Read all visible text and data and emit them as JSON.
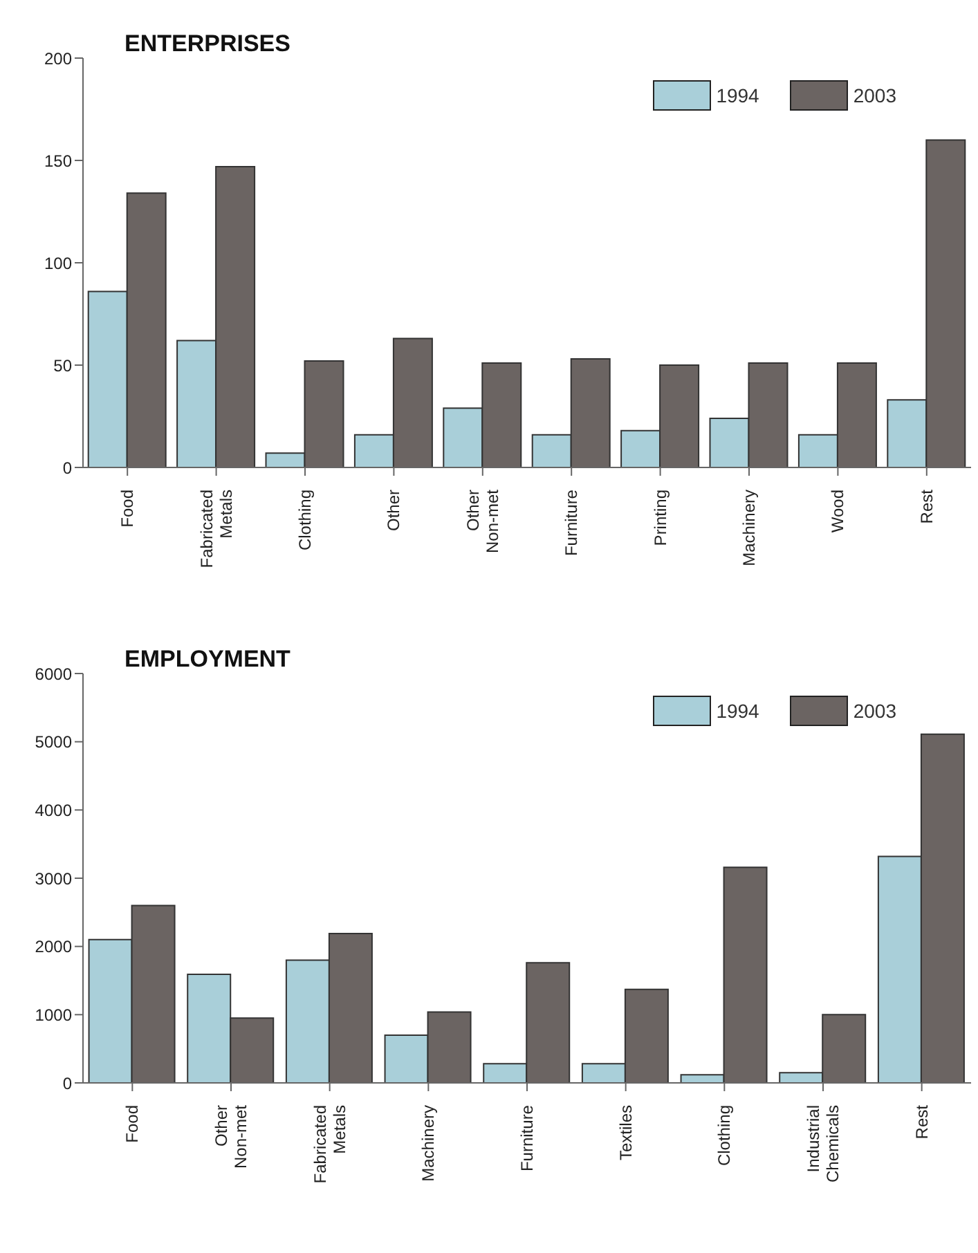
{
  "chart_data": [
    {
      "type": "bar",
      "title": "ENTERPRISES",
      "categories": [
        "Food",
        "Fabricated Metals",
        "Clothing",
        "Other",
        "Other Non-met",
        "Furniture",
        "Printing",
        "Machinery",
        "Wood",
        "Rest"
      ],
      "series": [
        {
          "name": "1994",
          "color": "#a9cfd9",
          "values": [
            86,
            62,
            7,
            16,
            29,
            16,
            18,
            24,
            16,
            33
          ]
        },
        {
          "name": "2003",
          "color": "#6b6462",
          "values": [
            134,
            147,
            52,
            63,
            51,
            53,
            50,
            51,
            51,
            160
          ]
        }
      ],
      "ylim": [
        0,
        200
      ],
      "yticks": [
        0,
        50,
        100,
        150,
        200
      ],
      "grid": false,
      "legend": "top right"
    },
    {
      "type": "bar",
      "title": "EMPLOYMENT",
      "categories": [
        "Food",
        "Other Non-met",
        "Fabricated Metals",
        "Machinery",
        "Furniture",
        "Textiles",
        "Clothing",
        "Industrial Chemicals",
        "Rest"
      ],
      "series": [
        {
          "name": "1994",
          "color": "#a9cfd9",
          "values": [
            2100,
            1590,
            1800,
            700,
            280,
            280,
            120,
            150,
            3320
          ]
        },
        {
          "name": "2003",
          "color": "#6b6462",
          "values": [
            2600,
            950,
            2190,
            1040,
            1760,
            1370,
            3160,
            1000,
            5110
          ]
        }
      ],
      "ylim": [
        0,
        6000
      ],
      "yticks": [
        0,
        1000,
        2000,
        3000,
        4000,
        5000,
        6000
      ],
      "grid": false,
      "legend": "top right"
    }
  ]
}
